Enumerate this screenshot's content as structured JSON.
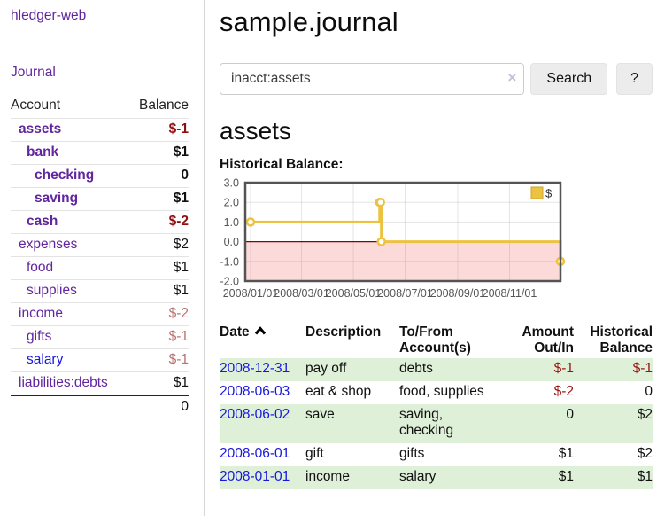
{
  "colors": {
    "accent_purple": "#61259e",
    "link_blue": "#1717dd",
    "negative_strong": "#8e1111",
    "negative_soft": "#bb7171",
    "row_stripe_green": "#dff0d8",
    "series_gold": "#edc240"
  },
  "sidebar": {
    "brand": "hledger-web",
    "journal_link": "Journal",
    "accounts_table": {
      "headers": {
        "account": "Account",
        "balance": "Balance"
      },
      "rows": [
        {
          "name": "assets",
          "balance": "$-1",
          "level": 1,
          "bold": true,
          "balance_style": "negative-strong"
        },
        {
          "name": "bank",
          "balance": "$1",
          "level": 2,
          "bold": true,
          "balance_style": "normal"
        },
        {
          "name": "checking",
          "balance": "0",
          "level": 3,
          "bold": true,
          "balance_style": "normal"
        },
        {
          "name": "saving",
          "balance": "$1",
          "level": 3,
          "bold": true,
          "balance_style": "normal"
        },
        {
          "name": "cash",
          "balance": "$-2",
          "level": 2,
          "bold": true,
          "balance_style": "negative-strong"
        },
        {
          "name": "expenses",
          "balance": "$2",
          "level": 1,
          "bold": false,
          "balance_style": "normal"
        },
        {
          "name": "food",
          "balance": "$1",
          "level": 2,
          "bold": false,
          "balance_style": "normal"
        },
        {
          "name": "supplies",
          "balance": "$1",
          "level": 2,
          "bold": false,
          "balance_style": "normal"
        },
        {
          "name": "income",
          "balance": "$-2",
          "level": 1,
          "bold": false,
          "balance_style": "negative-soft"
        },
        {
          "name": "gifts",
          "balance": "$-1",
          "level": 2,
          "bold": false,
          "balance_style": "negative-soft"
        },
        {
          "name": "salary",
          "balance": "$-1",
          "level": 2,
          "bold": false,
          "balance_style": "negative-soft",
          "link_style": "blue"
        },
        {
          "name": "liabilities:debts",
          "balance": "$1",
          "level": 1,
          "bold": false,
          "balance_style": "normal"
        }
      ],
      "total": "0"
    }
  },
  "main": {
    "title": "sample.journal",
    "search": {
      "value": "inacct:assets",
      "clear_icon": "×",
      "button_label": "Search",
      "help_label": "?"
    },
    "section_title": "assets",
    "chart_label": "Historical Balance:",
    "register_table": {
      "headers": {
        "date": "Date",
        "description": "Description",
        "to_from": "To/From Account(s)",
        "amount": "Amount Out/In",
        "balance": "Historical Balance"
      },
      "sort": {
        "column": "date",
        "direction": "ascending",
        "icon": "chevron-up-icon"
      },
      "rows": [
        {
          "date": "2008-12-31",
          "description": "pay off",
          "accounts": "debts",
          "amount": "$-1",
          "balance": "$-1"
        },
        {
          "date": "2008-06-03",
          "description": "eat & shop",
          "accounts": "food, supplies",
          "amount": "$-2",
          "balance": "0"
        },
        {
          "date": "2008-06-02",
          "description": "save",
          "accounts": "saving, checking",
          "amount": "0",
          "balance": "$2"
        },
        {
          "date": "2008-06-01",
          "description": "gift",
          "accounts": "gifts",
          "amount": "$1",
          "balance": "$2"
        },
        {
          "date": "2008-01-01",
          "description": "income",
          "accounts": "salary",
          "amount": "$1",
          "balance": "$1"
        }
      ]
    }
  },
  "chart_data": {
    "type": "line",
    "step": true,
    "title": "Historical Balance:",
    "series": [
      {
        "name": "$",
        "color": "#edc240",
        "points": [
          {
            "date": "2008-01-01",
            "value": 1
          },
          {
            "date": "2008-06-01",
            "value": 2
          },
          {
            "date": "2008-06-02",
            "value": 2
          },
          {
            "date": "2008-06-03",
            "value": 0
          },
          {
            "date": "2008-12-31",
            "value": -1
          }
        ]
      }
    ],
    "x_range": [
      "2008-01-01",
      "2008-12-31"
    ],
    "x_ticks": [
      "2008/01/01",
      "2008/03/01",
      "2008/05/01",
      "2008/07/01",
      "2008/09/01",
      "2008/11/01"
    ],
    "y_ticks": [
      3.0,
      2.0,
      1.0,
      0.0,
      -1.0,
      -2.0
    ],
    "ylim": [
      -2,
      3
    ],
    "grid": true,
    "legend_position": "top-right",
    "colors": {
      "negative_region": "#fcdada",
      "zero_line": "#8b0000",
      "border": "#545454",
      "legend_swatch_border": "#c9a72f"
    }
  }
}
